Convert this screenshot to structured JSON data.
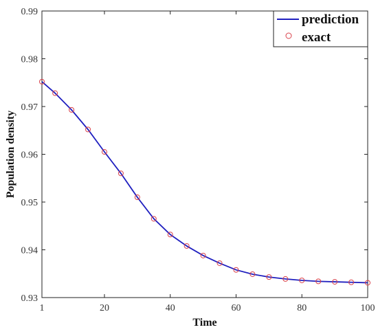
{
  "chart_data": {
    "type": "line",
    "xlabel": "Time",
    "ylabel": "Population density",
    "xlim": [
      1,
      100
    ],
    "ylim": [
      0.93,
      0.99
    ],
    "xticks": [
      1,
      20,
      40,
      60,
      80,
      100
    ],
    "yticks": [
      0.93,
      0.94,
      0.95,
      0.96,
      0.97,
      0.98,
      0.99
    ],
    "xtick_labels": [
      "1",
      "20",
      "40",
      "60",
      "80",
      "100"
    ],
    "ytick_labels": [
      "0.93",
      "0.94",
      "0.95",
      "0.96",
      "0.97",
      "0.98",
      "0.99"
    ],
    "grid": false,
    "legend_position": "top-right",
    "series": [
      {
        "name": "prediction",
        "style": "line",
        "color": "#1f1fbf",
        "x": [
          1,
          5,
          10,
          15,
          20,
          25,
          30,
          35,
          40,
          45,
          50,
          55,
          60,
          65,
          70,
          75,
          80,
          85,
          90,
          95,
          100
        ],
        "y": [
          0.9752,
          0.9728,
          0.9693,
          0.9652,
          0.9605,
          0.956,
          0.951,
          0.9465,
          0.9432,
          0.9408,
          0.9388,
          0.9372,
          0.9358,
          0.9349,
          0.9343,
          0.9339,
          0.9336,
          0.9334,
          0.9333,
          0.9332,
          0.9331
        ]
      },
      {
        "name": "exact",
        "style": "markers",
        "marker": "circle",
        "color": "#d9404a",
        "x": [
          1,
          5,
          10,
          15,
          20,
          25,
          30,
          35,
          40,
          45,
          50,
          55,
          60,
          65,
          70,
          75,
          80,
          85,
          90,
          95,
          100
        ],
        "y": [
          0.9752,
          0.9728,
          0.9693,
          0.9652,
          0.9605,
          0.956,
          0.951,
          0.9465,
          0.9432,
          0.9408,
          0.9388,
          0.9372,
          0.9358,
          0.9349,
          0.9343,
          0.9339,
          0.9336,
          0.9334,
          0.9333,
          0.9332,
          0.9331
        ]
      }
    ]
  }
}
